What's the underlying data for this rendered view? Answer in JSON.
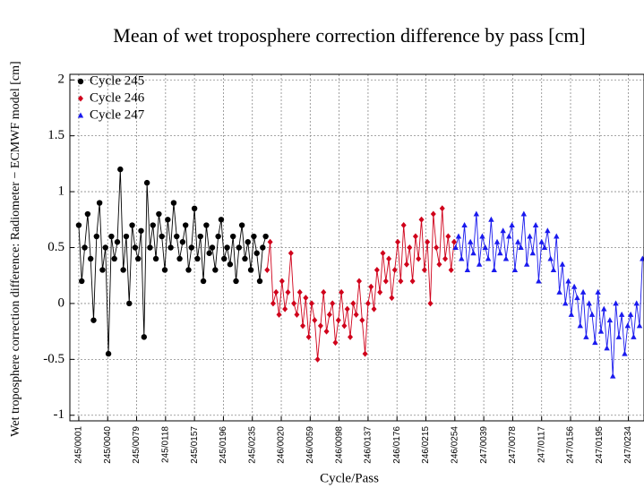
{
  "chart_data": {
    "type": "scatter-line",
    "title": "Mean of wet troposphere correction difference by pass [cm]",
    "x_label": "Cycle/Pass",
    "y_label": "Wet troposphere correction difference: Radiometer − ECMWF model [cm]",
    "xlim": [
      -12,
      762
    ],
    "ylim": [
      -1.05,
      2.05
    ],
    "yticks": [
      -1,
      -0.5,
      0,
      0.5,
      1,
      1.5,
      2
    ],
    "xticks": [
      {
        "value": 0,
        "label": "245/0001"
      },
      {
        "value": 39,
        "label": "245/0040"
      },
      {
        "value": 78,
        "label": "245/0079"
      },
      {
        "value": 117,
        "label": "245/0118"
      },
      {
        "value": 156,
        "label": "245/0157"
      },
      {
        "value": 195,
        "label": "245/0196"
      },
      {
        "value": 234,
        "label": "245/0235"
      },
      {
        "value": 273,
        "label": "246/0020"
      },
      {
        "value": 312,
        "label": "246/0059"
      },
      {
        "value": 351,
        "label": "246/0098"
      },
      {
        "value": 390,
        "label": "246/0137"
      },
      {
        "value": 429,
        "label": "246/0176"
      },
      {
        "value": 468,
        "label": "246/0215"
      },
      {
        "value": 507,
        "label": "246/0254"
      },
      {
        "value": 546,
        "label": "247/0039"
      },
      {
        "value": 585,
        "label": "247/0078"
      },
      {
        "value": 624,
        "label": "247/0117"
      },
      {
        "value": 663,
        "label": "247/0156"
      },
      {
        "value": 702,
        "label": "247/0195"
      },
      {
        "value": 741,
        "label": "247/0234"
      }
    ],
    "grid": true,
    "legend": "upper left",
    "series": [
      {
        "name": "Cycle 245",
        "color": "#000000",
        "marker": "circle",
        "x": [
          0,
          4,
          8,
          12,
          16,
          20,
          24,
          28,
          32,
          36,
          40,
          44,
          48,
          52,
          56,
          60,
          64,
          68,
          72,
          76,
          80,
          84,
          88,
          92,
          96,
          100,
          104,
          108,
          112,
          116,
          120,
          124,
          128,
          132,
          136,
          140,
          144,
          148,
          152,
          156,
          160,
          164,
          168,
          172,
          176,
          180,
          184,
          188,
          192,
          196,
          200,
          204,
          208,
          212,
          216,
          220,
          224,
          228,
          232,
          236,
          240,
          244,
          248,
          252
        ],
        "values": [
          0.7,
          0.2,
          0.5,
          0.8,
          0.4,
          -0.15,
          0.6,
          0.9,
          0.3,
          0.5,
          -0.45,
          0.6,
          0.4,
          0.55,
          1.2,
          0.3,
          0.6,
          0.0,
          0.7,
          0.5,
          0.4,
          0.65,
          -0.3,
          1.08,
          0.5,
          0.7,
          0.4,
          0.8,
          0.6,
          0.3,
          0.75,
          0.5,
          0.9,
          0.6,
          0.4,
          0.55,
          0.7,
          0.3,
          0.5,
          0.85,
          0.4,
          0.6,
          0.2,
          0.7,
          0.45,
          0.5,
          0.3,
          0.6,
          0.75,
          0.4,
          0.5,
          0.35,
          0.6,
          0.2,
          0.5,
          0.7,
          0.4,
          0.55,
          0.3,
          0.6,
          0.45,
          0.2,
          0.5,
          0.6
        ]
      },
      {
        "name": "Cycle 246",
        "color": "#d0021b",
        "marker": "diamond",
        "x": [
          254,
          258,
          262,
          266,
          270,
          274,
          278,
          282,
          286,
          290,
          294,
          298,
          302,
          306,
          310,
          314,
          318,
          322,
          326,
          330,
          334,
          338,
          342,
          346,
          350,
          354,
          358,
          362,
          366,
          370,
          374,
          378,
          382,
          386,
          390,
          394,
          398,
          402,
          406,
          410,
          414,
          418,
          422,
          426,
          430,
          434,
          438,
          442,
          446,
          450,
          454,
          458,
          462,
          466,
          470,
          474,
          478,
          482,
          486,
          490,
          494,
          498,
          502,
          506
        ],
        "values": [
          0.3,
          0.55,
          0.0,
          0.1,
          -0.1,
          0.2,
          -0.05,
          0.1,
          0.45,
          0.0,
          -0.1,
          0.1,
          -0.2,
          0.05,
          -0.3,
          0.0,
          -0.15,
          -0.5,
          -0.2,
          0.1,
          -0.25,
          -0.1,
          0.0,
          -0.35,
          -0.15,
          0.1,
          -0.2,
          -0.05,
          -0.3,
          0.0,
          -0.1,
          0.2,
          -0.15,
          -0.45,
          0.0,
          0.15,
          -0.05,
          0.3,
          0.1,
          0.45,
          0.2,
          0.4,
          0.05,
          0.3,
          0.55,
          0.2,
          0.7,
          0.35,
          0.5,
          0.2,
          0.6,
          0.4,
          0.75,
          0.3,
          0.55,
          0.0,
          0.8,
          0.5,
          0.35,
          0.85,
          0.4,
          0.6,
          0.3,
          0.55
        ]
      },
      {
        "name": "Cycle 247",
        "color": "#1a1aee",
        "marker": "triangle",
        "x": [
          508,
          512,
          516,
          520,
          524,
          528,
          532,
          536,
          540,
          544,
          548,
          552,
          556,
          560,
          564,
          568,
          572,
          576,
          580,
          584,
          588,
          592,
          596,
          600,
          604,
          608,
          612,
          616,
          620,
          624,
          628,
          632,
          636,
          640,
          644,
          648,
          652,
          656,
          660,
          664,
          668,
          672,
          676,
          680,
          684,
          688,
          692,
          696,
          700,
          704,
          708,
          712,
          716,
          720,
          724,
          728,
          732,
          736,
          740,
          744,
          748,
          752,
          756,
          760
        ],
        "values": [
          0.5,
          0.6,
          0.4,
          0.7,
          0.3,
          0.55,
          0.45,
          0.8,
          0.35,
          0.6,
          0.5,
          0.4,
          0.75,
          0.3,
          0.55,
          0.45,
          0.65,
          0.4,
          0.6,
          0.7,
          0.3,
          0.55,
          0.5,
          0.8,
          0.35,
          0.6,
          0.45,
          0.7,
          0.2,
          0.55,
          0.5,
          0.65,
          0.4,
          0.3,
          0.6,
          0.1,
          0.35,
          0.0,
          0.2,
          -0.1,
          0.15,
          0.05,
          -0.2,
          0.1,
          -0.3,
          0.0,
          -0.1,
          -0.35,
          0.1,
          -0.25,
          -0.05,
          -0.4,
          -0.15,
          -0.65,
          0.0,
          -0.3,
          -0.1,
          -0.45,
          -0.2,
          -0.1,
          -0.3,
          0.0,
          -0.2,
          0.4
        ]
      }
    ]
  }
}
